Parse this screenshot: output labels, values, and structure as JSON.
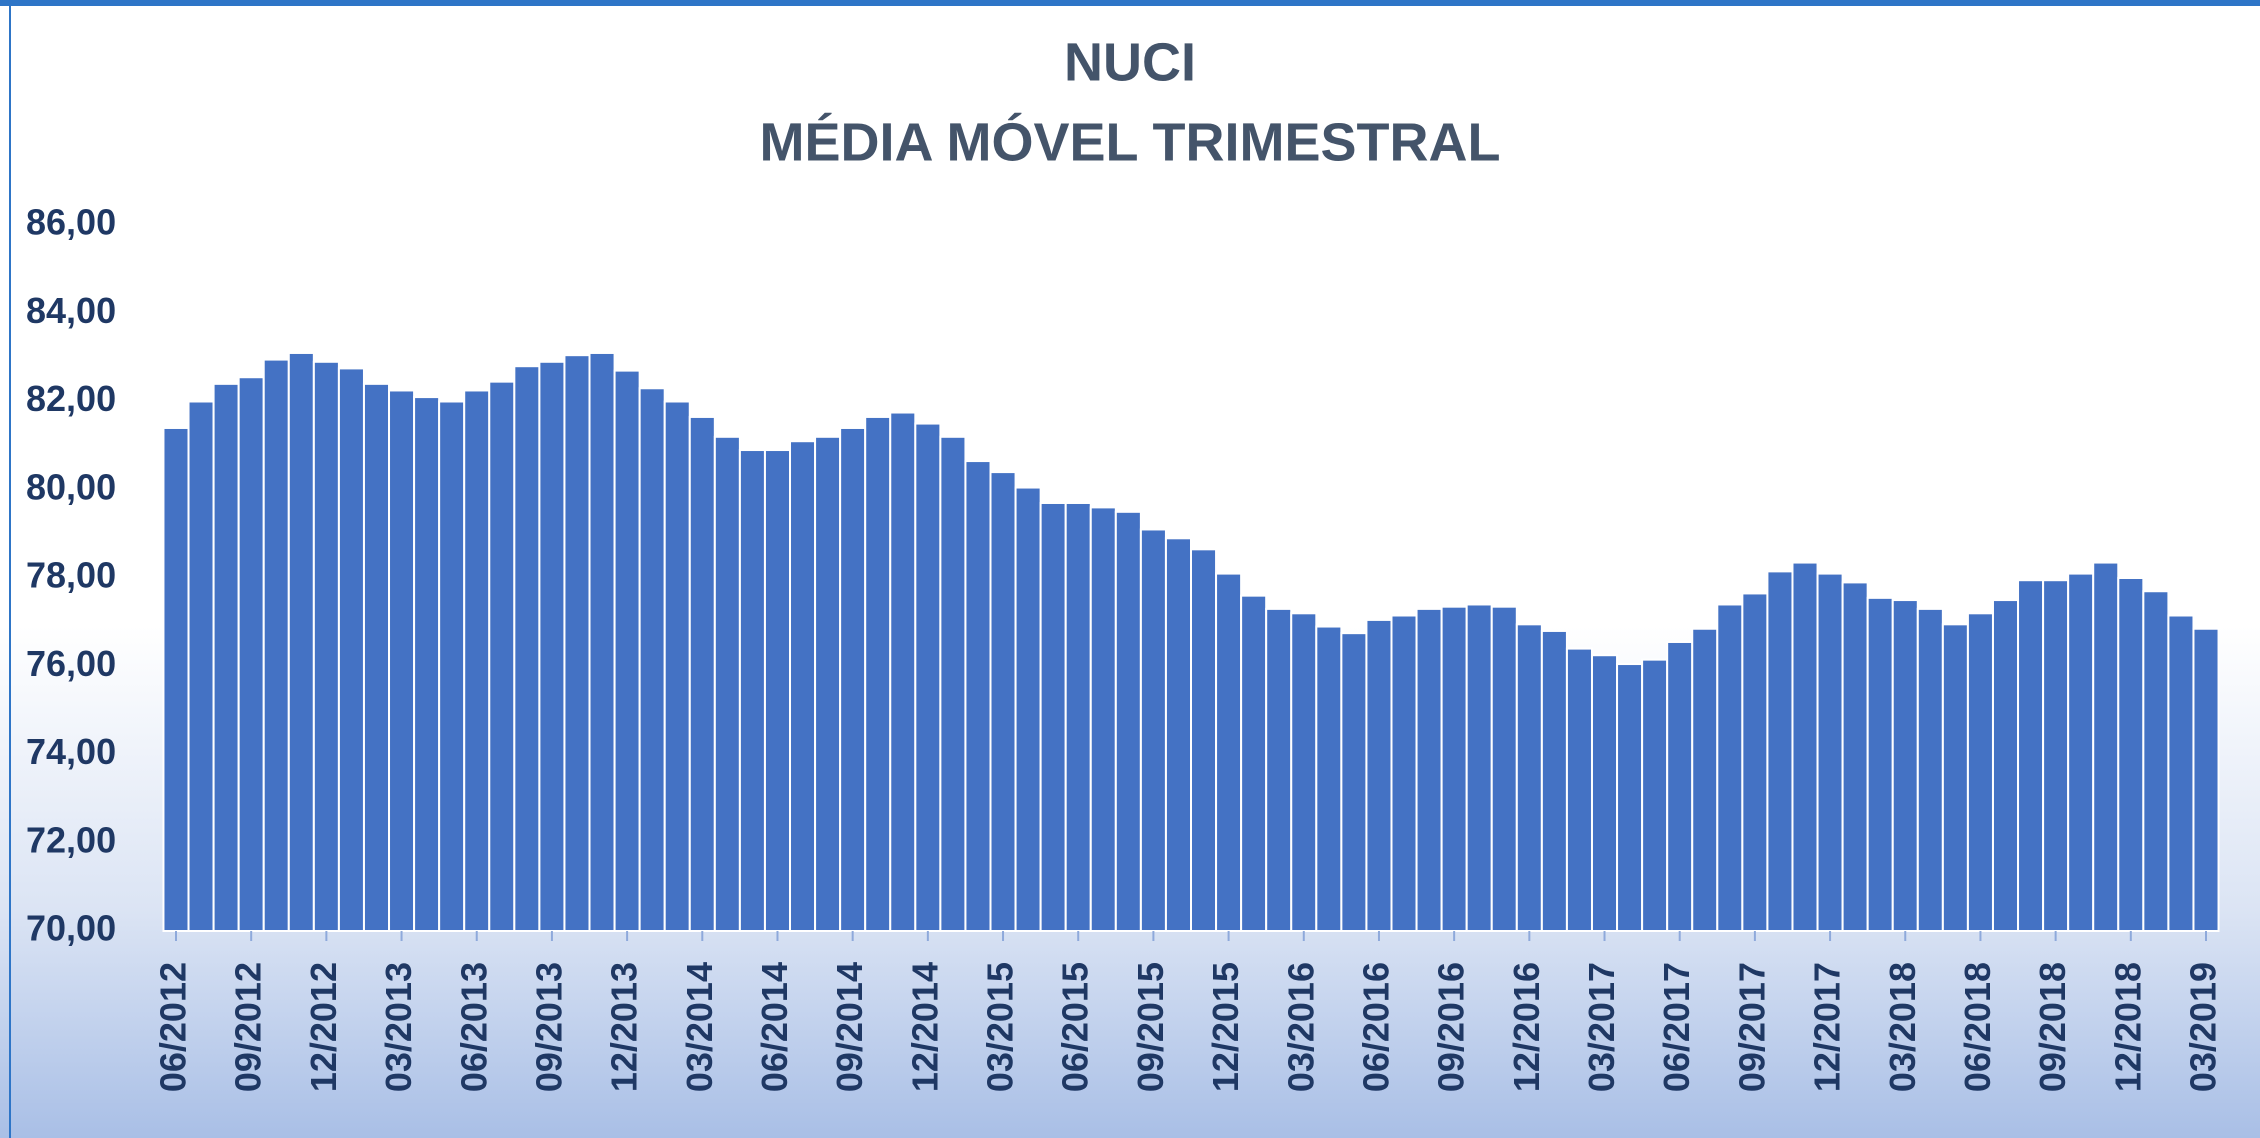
{
  "chart_data": {
    "type": "bar",
    "title": "NUCI",
    "subtitle": "MÉDIA MÓVEL TRIMESTRAL",
    "categories": [
      "06/2012",
      null,
      null,
      "09/2012",
      null,
      null,
      "12/2012",
      null,
      null,
      "03/2013",
      null,
      null,
      "06/2013",
      null,
      null,
      "09/2013",
      null,
      null,
      "12/2013",
      null,
      null,
      "03/2014",
      null,
      null,
      "06/2014",
      null,
      null,
      "09/2014",
      null,
      null,
      "12/2014",
      null,
      null,
      "03/2015",
      null,
      null,
      "06/2015",
      null,
      null,
      "09/2015",
      null,
      null,
      "12/2015",
      null,
      null,
      "03/2016",
      null,
      null,
      "06/2016",
      null,
      null,
      "09/2016",
      null,
      null,
      "12/2016",
      null,
      null,
      "03/2017",
      null,
      null,
      "06/2017",
      null,
      null,
      "09/2017",
      null,
      null,
      "12/2017",
      null,
      null,
      "03/2018",
      null,
      null,
      "06/2018",
      null,
      null,
      "09/2018",
      null,
      null,
      "12/2018",
      null,
      null,
      "03/2019"
    ],
    "values": [
      81.4,
      82.0,
      82.4,
      82.55,
      82.95,
      83.1,
      82.9,
      82.75,
      82.4,
      82.25,
      82.1,
      82.0,
      82.25,
      82.45,
      82.8,
      82.9,
      83.05,
      83.1,
      82.7,
      82.3,
      82.0,
      81.65,
      81.2,
      80.9,
      80.9,
      81.1,
      81.2,
      81.4,
      81.65,
      81.75,
      81.5,
      81.2,
      80.65,
      80.4,
      80.05,
      79.7,
      79.7,
      79.6,
      79.5,
      79.1,
      78.9,
      78.65,
      78.1,
      77.6,
      77.3,
      77.2,
      76.9,
      76.75,
      77.05,
      77.15,
      77.3,
      77.35,
      77.4,
      77.35,
      76.95,
      76.8,
      76.4,
      76.25,
      76.05,
      76.15,
      76.55,
      76.85,
      77.4,
      77.65,
      78.15,
      78.35,
      78.1,
      77.9,
      77.55,
      77.5,
      77.3,
      76.95,
      77.2,
      77.5,
      77.95,
      77.95,
      78.1,
      78.35,
      78.0,
      77.7,
      77.15,
      76.85
    ],
    "color": "#4472c4",
    "ylim": [
      70,
      86
    ],
    "yticks": [
      {
        "value": 70,
        "label": "70,00"
      },
      {
        "value": 72,
        "label": "72,00"
      },
      {
        "value": 74,
        "label": "74,00"
      },
      {
        "value": 76,
        "label": "76,00"
      },
      {
        "value": 78,
        "label": "78,00"
      },
      {
        "value": 80,
        "label": "80,00"
      },
      {
        "value": 82,
        "label": "82,00"
      },
      {
        "value": 84,
        "label": "84,00"
      },
      {
        "value": 86,
        "label": "86,00"
      }
    ],
    "grid": false
  }
}
